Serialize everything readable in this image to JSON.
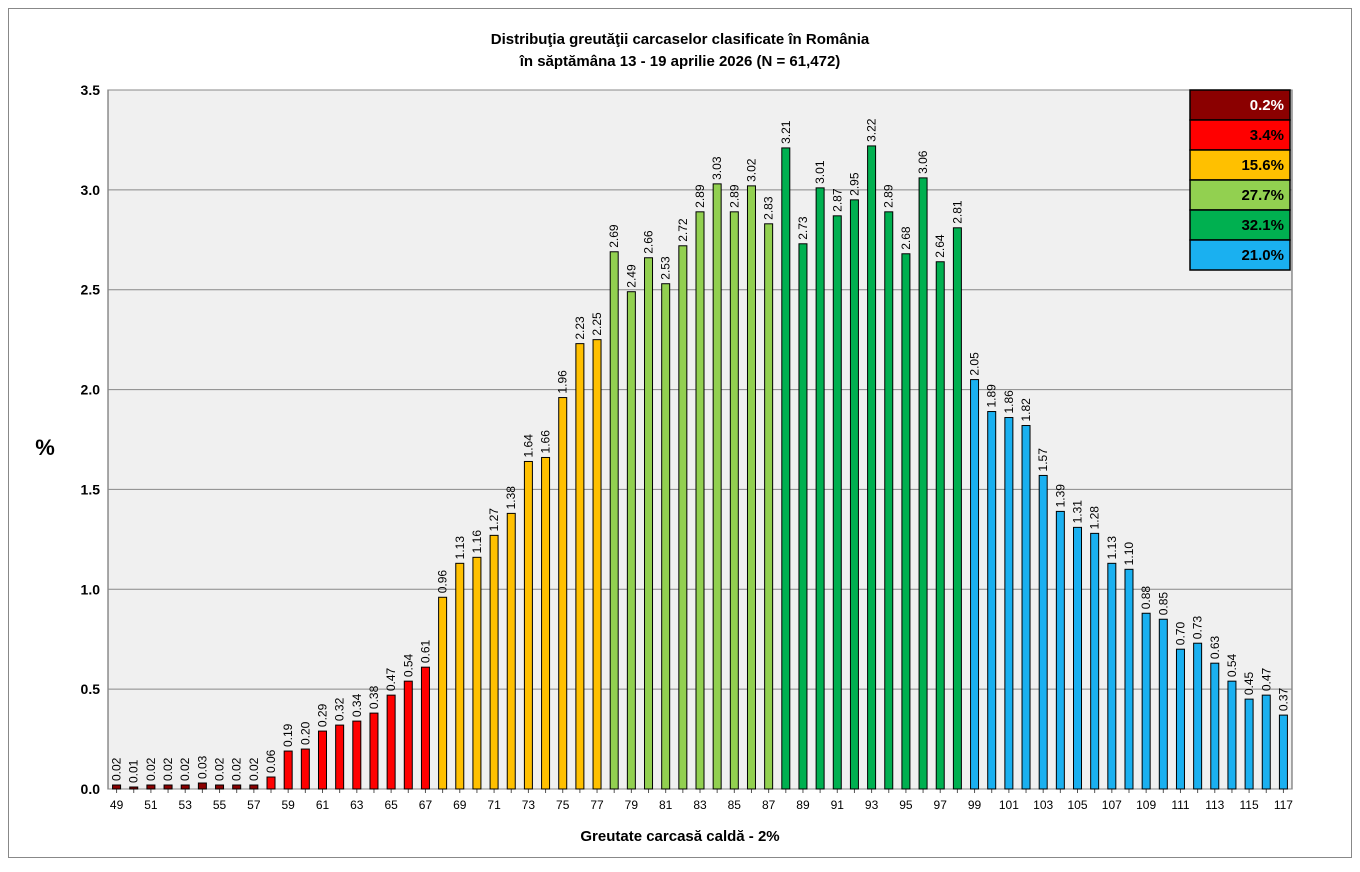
{
  "chart_data": {
    "type": "bar",
    "title": "Distribuţia greutăţii carcaselor clasificate în România",
    "subtitle": "în săptămâna 13 - 19 aprilie 2026 (N = 61,472)",
    "x_label": "Greutate carcasă caldă - 2%",
    "y_label": "%",
    "categories": [
      "49",
      null,
      "51",
      null,
      "53",
      null,
      "55",
      null,
      "57",
      null,
      "59",
      null,
      "61",
      null,
      "63",
      null,
      "65",
      null,
      "67",
      null,
      "69",
      null,
      "71",
      null,
      "73",
      null,
      "75",
      null,
      "77",
      null,
      "79",
      null,
      "81",
      null,
      "83",
      null,
      "85",
      null,
      "87",
      null,
      "89",
      null,
      "91",
      null,
      "93",
      null,
      "95",
      null,
      "97",
      null,
      "99",
      null,
      "101",
      null,
      "103",
      null,
      "105",
      null,
      "107",
      null,
      "109",
      null,
      "111",
      null,
      "113",
      null,
      "115",
      null,
      "117"
    ],
    "values": [
      0.02,
      0.01,
      0.02,
      0.02,
      0.02,
      0.03,
      0.02,
      0.02,
      0.02,
      0.06,
      0.19,
      0.2,
      0.29,
      0.32,
      0.34,
      0.38,
      0.47,
      0.54,
      0.61,
      0.96,
      1.13,
      1.16,
      1.27,
      1.38,
      1.64,
      1.66,
      1.96,
      2.23,
      2.25,
      2.69,
      2.49,
      2.66,
      2.53,
      2.72,
      2.89,
      3.03,
      2.89,
      3.02,
      2.83,
      3.21,
      2.73,
      3.01,
      2.87,
      2.95,
      3.22,
      2.89,
      2.68,
      3.06,
      2.64,
      2.81,
      2.05,
      1.89,
      1.86,
      1.82,
      1.57,
      1.39,
      1.31,
      1.28,
      1.13,
      1.1,
      0.88,
      0.85,
      0.7,
      0.73,
      0.63,
      0.54,
      0.45,
      0.47,
      0.37
    ],
    "value_labels": [
      "0.02",
      "0.01",
      "0.02",
      "0.02",
      "0.02",
      "0.03",
      "0.02",
      "0.02",
      "0.02",
      "0.06",
      "0.19",
      "0.20",
      "0.29",
      "0.32",
      "0.34",
      "0.38",
      "0.47",
      "0.54",
      "0.61",
      "0.96",
      "1.13",
      "1.16",
      "1.27",
      "1.38",
      "1.64",
      "1.66",
      "1.96",
      "2.23",
      "2.25",
      "2.69",
      "2.49",
      "2.66",
      "2.53",
      "2.72",
      "2.89",
      "3.03",
      "2.89",
      "3.02",
      "2.83",
      "3.21",
      "2.73",
      "3.01",
      "2.87",
      "2.95",
      "3.22",
      "2.89",
      "2.68",
      "3.06",
      "2.64",
      "2.81",
      "2.05",
      "1.89",
      "1.86",
      "1.82",
      "1.57",
      "1.39",
      "1.31",
      "1.28",
      "1.13",
      "1.10",
      "0.88",
      "0.85",
      "0.70",
      "0.73",
      "0.63",
      "0.54",
      "0.45",
      "0.47",
      "0.37"
    ],
    "colors": [
      "#8b0000",
      "#8b0000",
      "#8b0000",
      "#8b0000",
      "#8b0000",
      "#8b0000",
      "#8b0000",
      "#8b0000",
      "#8b0000",
      "#ff0000",
      "#ff0000",
      "#ff0000",
      "#ff0000",
      "#ff0000",
      "#ff0000",
      "#ff0000",
      "#ff0000",
      "#ff0000",
      "#ff0000",
      "#ffc000",
      "#ffc000",
      "#ffc000",
      "#ffc000",
      "#ffc000",
      "#ffc000",
      "#ffc000",
      "#ffc000",
      "#ffc000",
      "#ffc000",
      "#92d050",
      "#92d050",
      "#92d050",
      "#92d050",
      "#92d050",
      "#92d050",
      "#92d050",
      "#92d050",
      "#92d050",
      "#92d050",
      "#00b050",
      "#00b050",
      "#00b050",
      "#00b050",
      "#00b050",
      "#00b050",
      "#00b050",
      "#00b050",
      "#00b050",
      "#00b050",
      "#00b050",
      "#1ab0f0",
      "#1ab0f0",
      "#1ab0f0",
      "#1ab0f0",
      "#1ab0f0",
      "#1ab0f0",
      "#1ab0f0",
      "#1ab0f0",
      "#1ab0f0",
      "#1ab0f0",
      "#1ab0f0",
      "#1ab0f0",
      "#1ab0f0",
      "#1ab0f0",
      "#1ab0f0",
      "#1ab0f0",
      "#1ab0f0",
      "#1ab0f0",
      "#1ab0f0"
    ],
    "legend": [
      {
        "label": "0.2%",
        "color": "#8b0000",
        "text_color": "#ffffff"
      },
      {
        "label": "3.4%",
        "color": "#ff0000",
        "text_color": "#000000"
      },
      {
        "label": "15.6%",
        "color": "#ffc000",
        "text_color": "#000000"
      },
      {
        "label": "27.7%",
        "color": "#92d050",
        "text_color": "#000000"
      },
      {
        "label": "32.1%",
        "color": "#00b050",
        "text_color": "#000000"
      },
      {
        "label": "21.0%",
        "color": "#1ab0f0",
        "text_color": "#000000"
      }
    ],
    "legend_position": "upper right",
    "ylim": [
      0,
      3.5
    ],
    "yticks": [
      {
        "value": 0,
        "label": "0.0"
      },
      0.5,
      {
        "value": 1,
        "label": "1.0"
      },
      1.5,
      {
        "value": 2,
        "label": "2.0"
      },
      2.5,
      {
        "value": 3,
        "label": "3.0"
      },
      3.5
    ],
    "grid": true
  }
}
